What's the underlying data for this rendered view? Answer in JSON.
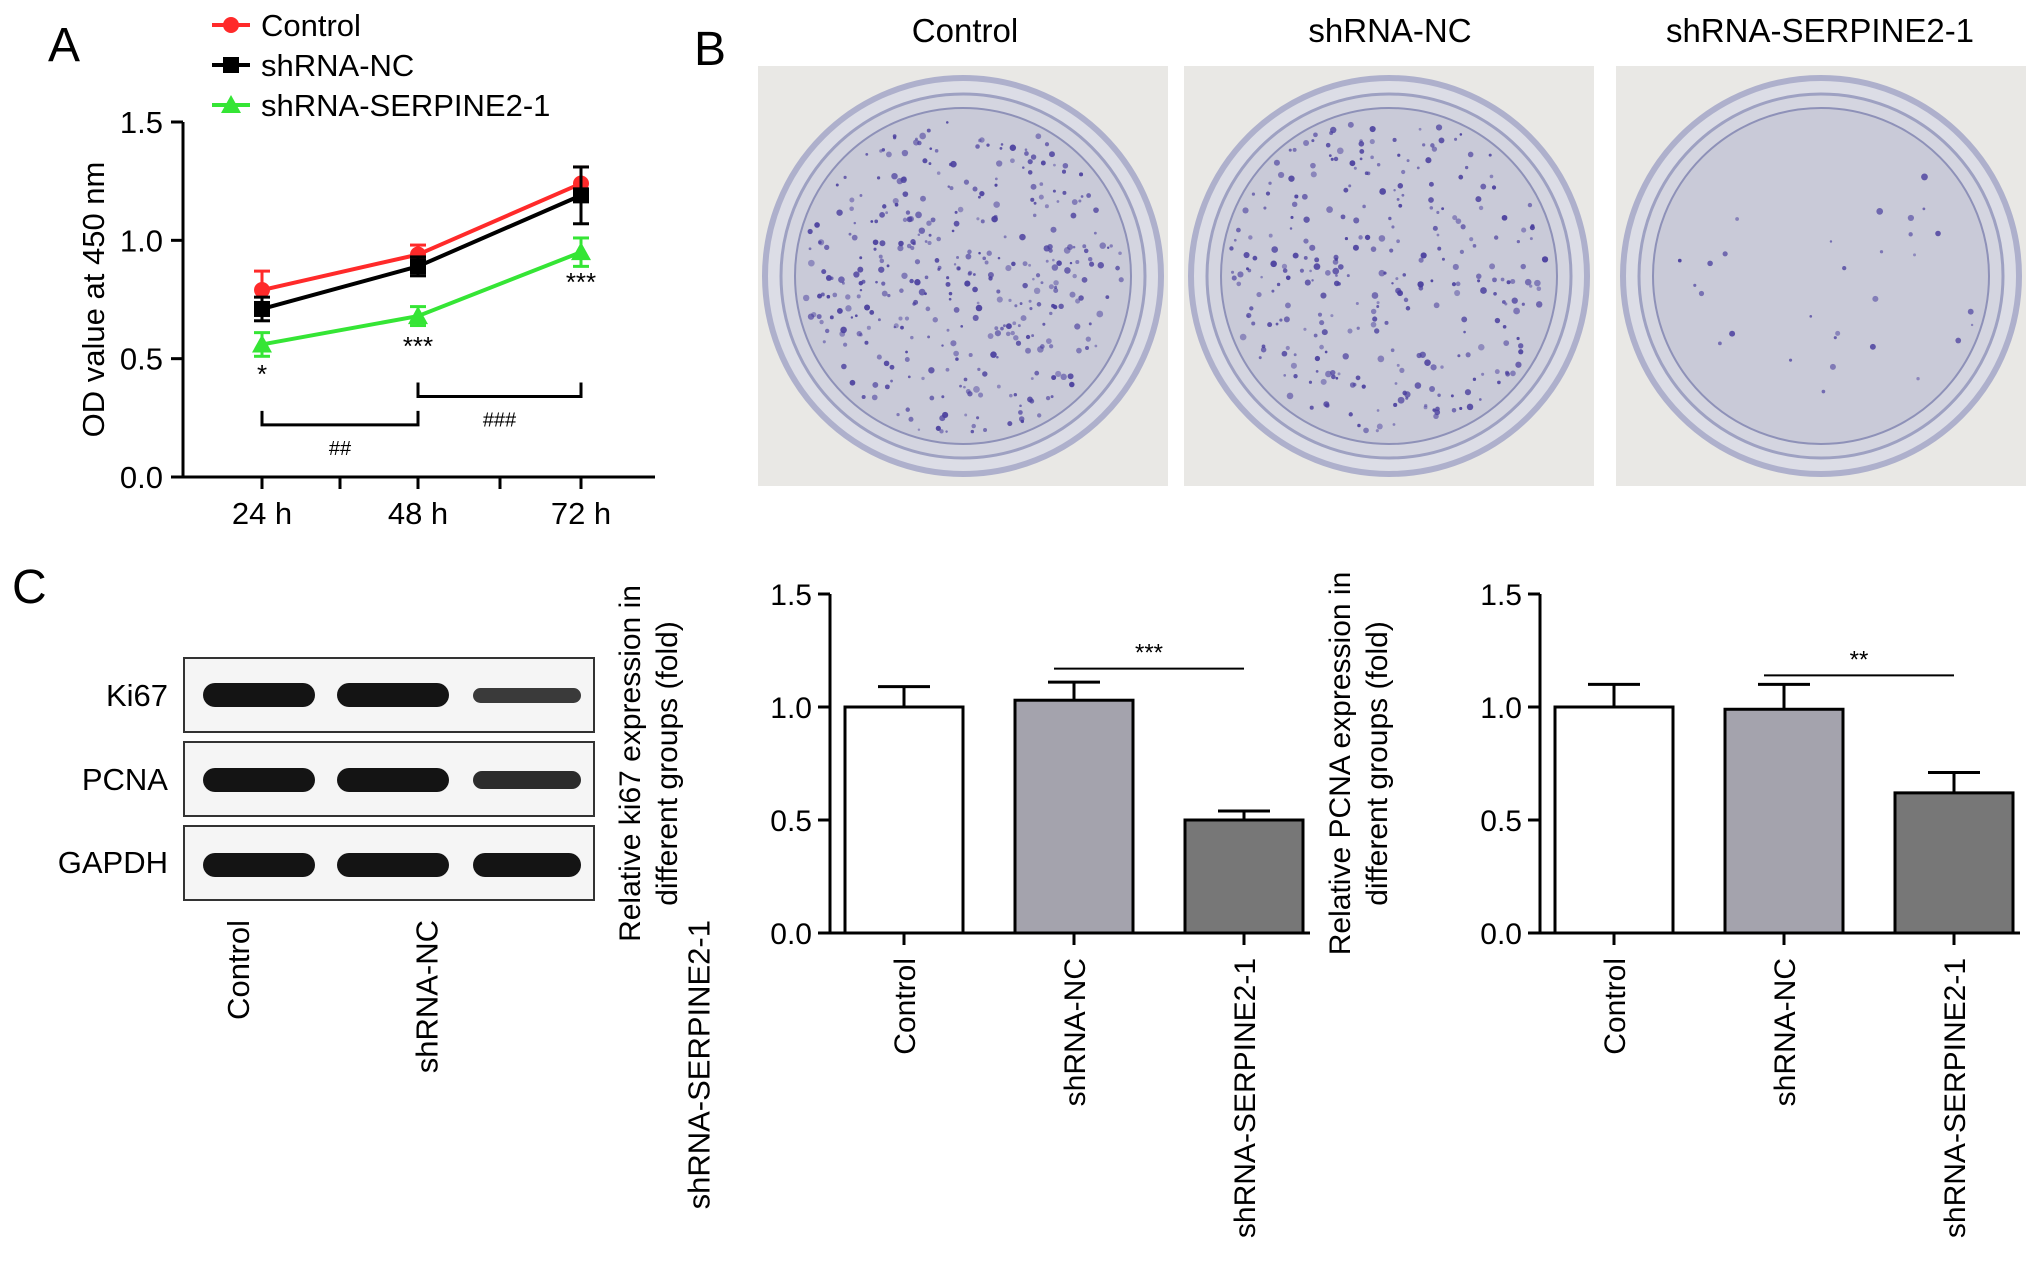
{
  "panel_labels": {
    "a": "A",
    "b": "B",
    "c": "C"
  },
  "colors": {
    "control": "#ff2a2a",
    "shrna_nc": "#000000",
    "shrna_serpine2": "#35e535",
    "bar_control": "#ffffff",
    "bar_nc": "#a4a3ad",
    "bar_serpine": "#777777",
    "stain": "#4a3f9e"
  },
  "panel_b": {
    "dish_titles": [
      "Control",
      "shRNA-NC",
      "shRNA-SERPINE2-1"
    ],
    "colony_density": [
      1.0,
      0.8,
      0.08
    ]
  },
  "panel_c_blot": {
    "rows": [
      "Ki67",
      "PCNA",
      "GAPDH"
    ],
    "lanes": [
      "Control",
      "shRNA-NC",
      "shRNA-SERPINE2-1"
    ]
  },
  "chart_data": [
    {
      "type": "line",
      "x": [
        "24 h",
        "48 h",
        "72 h"
      ],
      "ylabel": "OD value at 450 nm",
      "xlabel": "",
      "ylim": [
        0,
        1.5
      ],
      "yticks": [
        "0.0",
        "0.5",
        "1.0",
        "1.5"
      ],
      "legend_position": "top-left",
      "series": [
        {
          "name": "Control",
          "values": [
            0.79,
            0.94,
            1.24
          ],
          "errors": [
            0.08,
            0.04,
            0.07
          ],
          "marker": "circle",
          "color": "#ff2a2a"
        },
        {
          "name": "shRNA-NC",
          "values": [
            0.71,
            0.89,
            1.19
          ],
          "errors": [
            0.05,
            0.04,
            0.12
          ],
          "marker": "square",
          "color": "#000000"
        },
        {
          "name": "shRNA-SERPINE2-1",
          "values": [
            0.56,
            0.68,
            0.95
          ],
          "errors": [
            0.05,
            0.04,
            0.06
          ],
          "marker": "triangle",
          "color": "#35e535"
        }
      ],
      "annotations": [
        {
          "text": "*",
          "x": "24 h",
          "y": 0.43
        },
        {
          "text": "***",
          "x": "48 h",
          "y": 0.55
        },
        {
          "text": "***",
          "x": "72 h",
          "y": 0.82
        }
      ],
      "brackets": [
        {
          "text": "##",
          "from": "24 h",
          "to": "48 h",
          "y": 0.22
        },
        {
          "text": "###",
          "from": "48 h",
          "to": "72 h",
          "y": 0.34
        }
      ]
    },
    {
      "type": "bar",
      "categories": [
        "Control",
        "shRNA-NC",
        "shRNA-SERPINE2-1"
      ],
      "values": [
        1.0,
        1.03,
        0.5
      ],
      "errors": [
        0.09,
        0.08,
        0.04
      ],
      "ylabel": "Relative ki67 expression in different groups (fold)",
      "ylabel_lines": [
        "Relative ki67 expression in",
        "different groups (fold)"
      ],
      "xlabel": "",
      "ylim": [
        0,
        1.5
      ],
      "yticks": [
        "0.0",
        "0.5",
        "1.0",
        "1.5"
      ],
      "significance": {
        "text": "***",
        "from": "shRNA-NC",
        "to": "shRNA-SERPINE2-1",
        "y": 1.17
      }
    },
    {
      "type": "bar",
      "categories": [
        "Control",
        "shRNA-NC",
        "shRNA-SERPINE2-1"
      ],
      "values": [
        1.0,
        0.99,
        0.62
      ],
      "errors": [
        0.1,
        0.11,
        0.09
      ],
      "ylabel": "Relative PCNA expression in different groups (fold)",
      "ylabel_lines": [
        "Relative PCNA expression in",
        "different groups (fold)"
      ],
      "xlabel": "",
      "ylim": [
        0,
        1.5
      ],
      "yticks": [
        "0.0",
        "0.5",
        "1.0",
        "1.5"
      ],
      "significance": {
        "text": "**",
        "from": "shRNA-NC",
        "to": "shRNA-SERPINE2-1",
        "y": 1.14
      }
    }
  ]
}
